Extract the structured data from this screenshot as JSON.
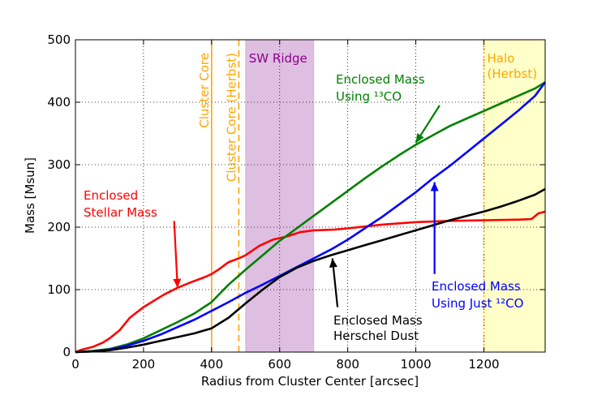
{
  "chart_data": {
    "type": "line",
    "xlabel": "Radius from Cluster Center [arcsec]",
    "ylabel": "Mass [Msun]",
    "xlim": [
      0,
      1380
    ],
    "ylim": [
      0,
      500
    ],
    "xticks": [
      0,
      200,
      400,
      600,
      800,
      1000,
      1200
    ],
    "yticks": [
      0,
      100,
      200,
      300,
      400,
      500
    ],
    "grid": true,
    "regions": [
      {
        "name": "SW Ridge",
        "x_start": 500,
        "x_end": 700,
        "color": "#d8b4dc",
        "label": "SW Ridge",
        "label_color": "#8b008b"
      },
      {
        "name": "Halo",
        "x_start": 1200,
        "x_end": 1380,
        "color": "#ffffc0",
        "label_lines": [
          "Halo",
          "(Herbst)"
        ],
        "label_color": "#ffa500"
      }
    ],
    "vlines": [
      {
        "name": "Cluster Core",
        "x": 400,
        "color": "#ffa500",
        "style": "solid",
        "label": "Cluster Core"
      },
      {
        "name": "Cluster Core (Herbst)",
        "x": 480,
        "color": "#ffa500",
        "style": "dashed",
        "label": "Cluster Core (Herbst)"
      },
      {
        "name": "Halo edge",
        "x": 1200,
        "color": "#ffa500",
        "style": "dotted",
        "label": ""
      }
    ],
    "series": [
      {
        "name": "Enclosed Stellar Mass",
        "color": "#ff0000",
        "x": [
          0,
          20,
          50,
          80,
          100,
          130,
          160,
          200,
          230,
          260,
          300,
          340,
          380,
          400,
          420,
          450,
          480,
          500,
          540,
          580,
          620,
          660,
          700,
          760,
          800,
          900,
          1000,
          1100,
          1200,
          1300,
          1340,
          1360,
          1380
        ],
        "y": [
          0,
          4,
          8,
          15,
          22,
          35,
          55,
          72,
          82,
          92,
          103,
          112,
          120,
          125,
          132,
          144,
          150,
          155,
          170,
          180,
          185,
          192,
          195,
          196,
          198,
          204,
          208,
          210,
          211,
          212,
          213,
          222,
          225
        ]
      },
      {
        "name": "Enclosed Mass Using 13CO",
        "color": "#008000",
        "x": [
          0,
          50,
          100,
          150,
          200,
          250,
          300,
          350,
          400,
          450,
          500,
          550,
          600,
          650,
          700,
          750,
          800,
          850,
          900,
          950,
          1000,
          1050,
          1100,
          1150,
          1200,
          1250,
          1300,
          1350,
          1380
        ],
        "y": [
          0,
          2,
          5,
          12,
          22,
          35,
          48,
          62,
          80,
          108,
          132,
          155,
          178,
          198,
          218,
          238,
          258,
          278,
          297,
          315,
          332,
          347,
          362,
          374,
          386,
          398,
          410,
          422,
          432
        ]
      },
      {
        "name": "Enclosed Mass Using Just 12CO",
        "color": "#0000ff",
        "x": [
          0,
          50,
          100,
          150,
          200,
          250,
          300,
          350,
          400,
          450,
          500,
          550,
          600,
          650,
          700,
          750,
          800,
          850,
          900,
          950,
          1000,
          1050,
          1100,
          1150,
          1200,
          1250,
          1300,
          1350,
          1380
        ],
        "y": [
          0,
          1,
          4,
          10,
          18,
          28,
          40,
          52,
          66,
          80,
          95,
          108,
          122,
          136,
          150,
          164,
          180,
          198,
          216,
          236,
          256,
          278,
          298,
          320,
          342,
          364,
          386,
          410,
          432
        ]
      },
      {
        "name": "Enclosed Mass Herschel Dust",
        "color": "#000000",
        "x": [
          0,
          50,
          100,
          150,
          200,
          250,
          300,
          350,
          400,
          450,
          500,
          550,
          600,
          650,
          700,
          750,
          800,
          850,
          900,
          950,
          1000,
          1050,
          1100,
          1150,
          1200,
          1250,
          1300,
          1350,
          1380
        ],
        "y": [
          0,
          1,
          3,
          7,
          12,
          18,
          24,
          30,
          38,
          55,
          78,
          100,
          120,
          135,
          146,
          155,
          163,
          171,
          179,
          187,
          195,
          203,
          211,
          218,
          225,
          233,
          242,
          252,
          261
        ]
      }
    ],
    "annotations": [
      {
        "name": "stellar",
        "lines": [
          "Enclosed",
          " Stellar Mass"
        ],
        "color": "#ff0000",
        "arrow_from": [
          290,
          210
        ],
        "arrow_to": [
          300,
          103
        ]
      },
      {
        "name": "13co",
        "lines": [
          "Enclosed Mass",
          "Using ¹³CO"
        ],
        "color": "#008000",
        "arrow_from": [
          1070,
          395
        ],
        "arrow_to": [
          1000,
          335
        ]
      },
      {
        "name": "12co",
        "lines": [
          "Enclosed Mass",
          "Using Just ¹²CO"
        ],
        "color": "#0000ff",
        "arrow_from": [
          1055,
          125
        ],
        "arrow_to": [
          1055,
          272
        ]
      },
      {
        "name": "dust",
        "lines": [
          "Enclosed Mass",
          "Herschel Dust"
        ],
        "color": "#000000",
        "arrow_from": [
          770,
          72
        ],
        "arrow_to": [
          755,
          150
        ]
      }
    ]
  }
}
